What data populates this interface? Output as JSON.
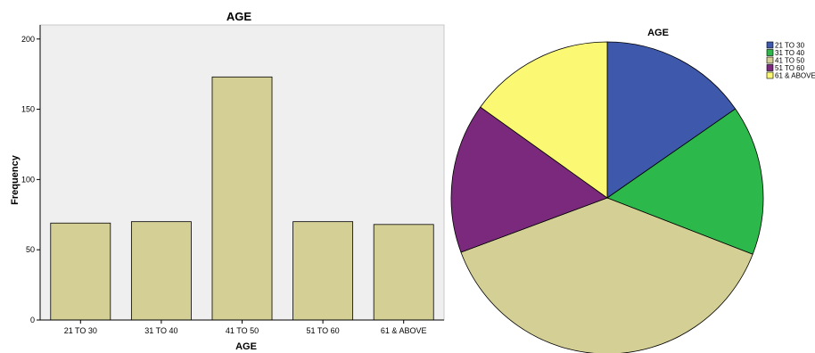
{
  "chart_data": [
    {
      "type": "bar",
      "title": "AGE",
      "xlabel": "AGE",
      "ylabel": "Frequency",
      "categories": [
        "21 TO 30",
        "31 TO 40",
        "41 TO 50",
        "51 TO 60",
        "61 & ABOVE"
      ],
      "values": [
        69,
        70,
        173,
        70,
        68
      ],
      "ylim": [
        0,
        210
      ],
      "yticks": [
        0,
        50,
        100,
        150,
        200
      ],
      "grid": false,
      "colors": {
        "bar": "#d4cf95",
        "plot_bg": "#efefef"
      }
    },
    {
      "type": "pie",
      "title": "AGE",
      "labels": [
        "21 TO 30",
        "31 TO 40",
        "41 TO 50",
        "51 TO 60",
        "61 & ABOVE"
      ],
      "values": [
        69,
        70,
        173,
        70,
        68
      ],
      "colors": [
        "#3e58ac",
        "#2db84b",
        "#d4cf95",
        "#7b297d",
        "#fbf873"
      ],
      "legend": "top-right"
    }
  ]
}
